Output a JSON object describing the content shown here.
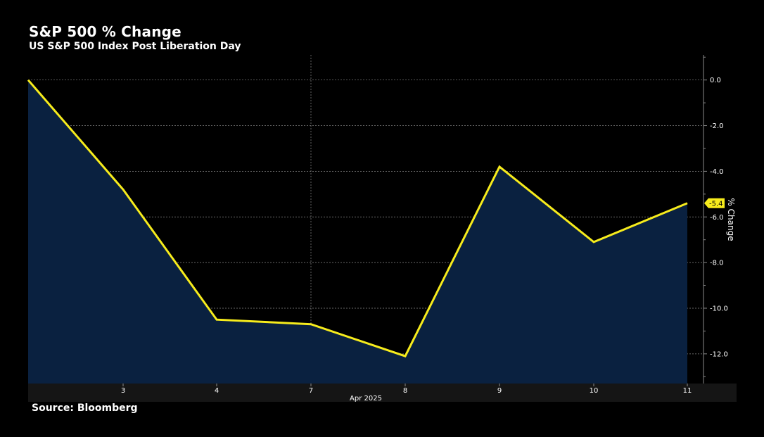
{
  "title": "S&P 500 % Change",
  "subtitle": "US S&P 500 Index Post Liberation Day",
  "source": "Source: Bloomberg",
  "colors": {
    "background": "#000000",
    "line": "#f7ec1c",
    "area": "#0a2140",
    "grid": "#8a8a8a",
    "text": "#ffffff",
    "axis_strip": "#151515",
    "last_label_bg": "#f7ec1c"
  },
  "chart_data": {
    "type": "area",
    "x": [
      "Apr 2",
      "Apr 3",
      "Apr 4",
      "Apr 7",
      "Apr 8",
      "Apr 9",
      "Apr 10",
      "Apr 11"
    ],
    "x_tick_labels": [
      "",
      "3",
      "4",
      "7",
      "8",
      "9",
      "10",
      "11"
    ],
    "x_month_label": "Apr 2025",
    "series": [
      {
        "values": [
          0.0,
          -4.8,
          -10.5,
          -10.7,
          -12.1,
          -3.8,
          -7.1,
          -5.4
        ]
      }
    ],
    "ylabel": "% Change",
    "ylim": [
      -13.3,
      1.1
    ],
    "yticks": [
      0.0,
      -2.0,
      -4.0,
      -6.0,
      -8.0,
      -10.0,
      -12.0
    ],
    "y_tick_labels": [
      "0.0",
      "-2.0",
      "-4.0",
      "-6.0",
      "-8.0",
      "-10.0",
      "-12.0"
    ],
    "last_value_label": "-5.4",
    "y_axis_position": "right",
    "grid": true
  }
}
